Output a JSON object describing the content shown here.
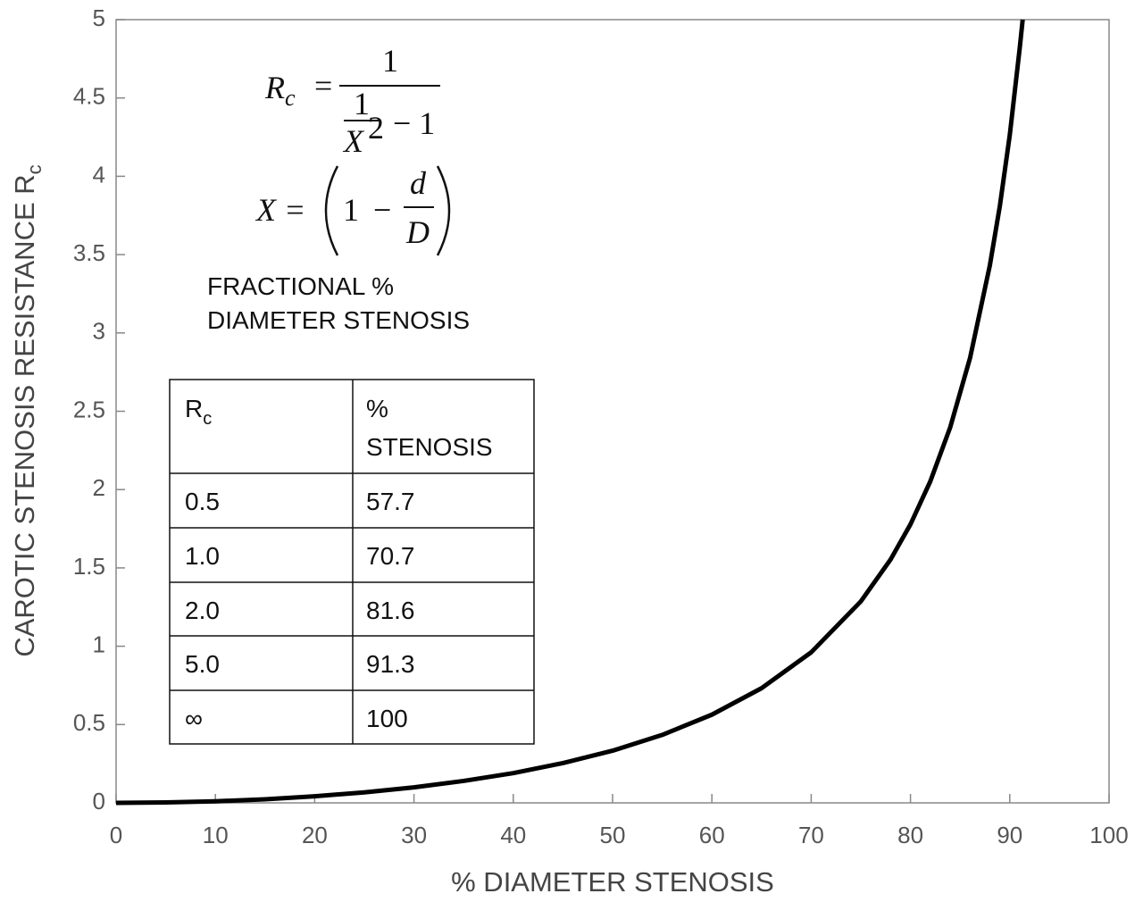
{
  "chart_data": {
    "type": "line",
    "x_label": "% DIAMETER STENOSIS",
    "y_label": "CAROTIC STENOSIS RESISTANCE R",
    "y_label_sub": "c",
    "x": [
      0,
      5,
      10,
      15,
      20,
      25,
      30,
      35,
      40,
      45,
      50,
      55,
      60,
      65,
      70,
      75,
      78,
      80,
      82,
      84,
      86,
      88,
      89,
      90,
      91,
      91.3
    ],
    "series": [
      {
        "color": "#000000",
        "values": [
          0,
          0.0025,
          0.01,
          0.023,
          0.042,
          0.067,
          0.099,
          0.14,
          0.19,
          0.254,
          0.333,
          0.434,
          0.563,
          0.732,
          0.961,
          1.286,
          1.554,
          1.778,
          2.053,
          2.397,
          2.84,
          3.433,
          3.81,
          4.263,
          4.817,
          5.0
        ]
      }
    ],
    "xlim": [
      0,
      100
    ],
    "ylim": [
      0,
      5
    ],
    "xticks": [
      0,
      10,
      20,
      30,
      40,
      50,
      60,
      70,
      80,
      90,
      100
    ],
    "yticks": [
      0,
      0.5,
      1,
      1.5,
      2,
      2.5,
      3,
      3.5,
      4,
      4.5,
      5
    ],
    "grid": false,
    "formula": {
      "r": "R",
      "r_sub": "c",
      "eq": "=",
      "one": "1",
      "x": "X",
      "exp": "2",
      "minus_one": "− 1",
      "x_eq": "X =",
      "minus": "−",
      "d": "d",
      "big_d": "D"
    },
    "note": [
      "FRACTIONAL %",
      "DIAMETER STENOSIS"
    ],
    "table": {
      "header": [
        {
          "text": "R",
          "sub": "c"
        },
        [
          "%",
          "STENOSIS"
        ]
      ],
      "rows": [
        [
          "0.5",
          "57.7"
        ],
        [
          "1.0",
          "70.7"
        ],
        [
          "2.0",
          "81.6"
        ],
        [
          "5.0",
          "91.3"
        ],
        [
          "∞",
          "100"
        ]
      ]
    }
  }
}
